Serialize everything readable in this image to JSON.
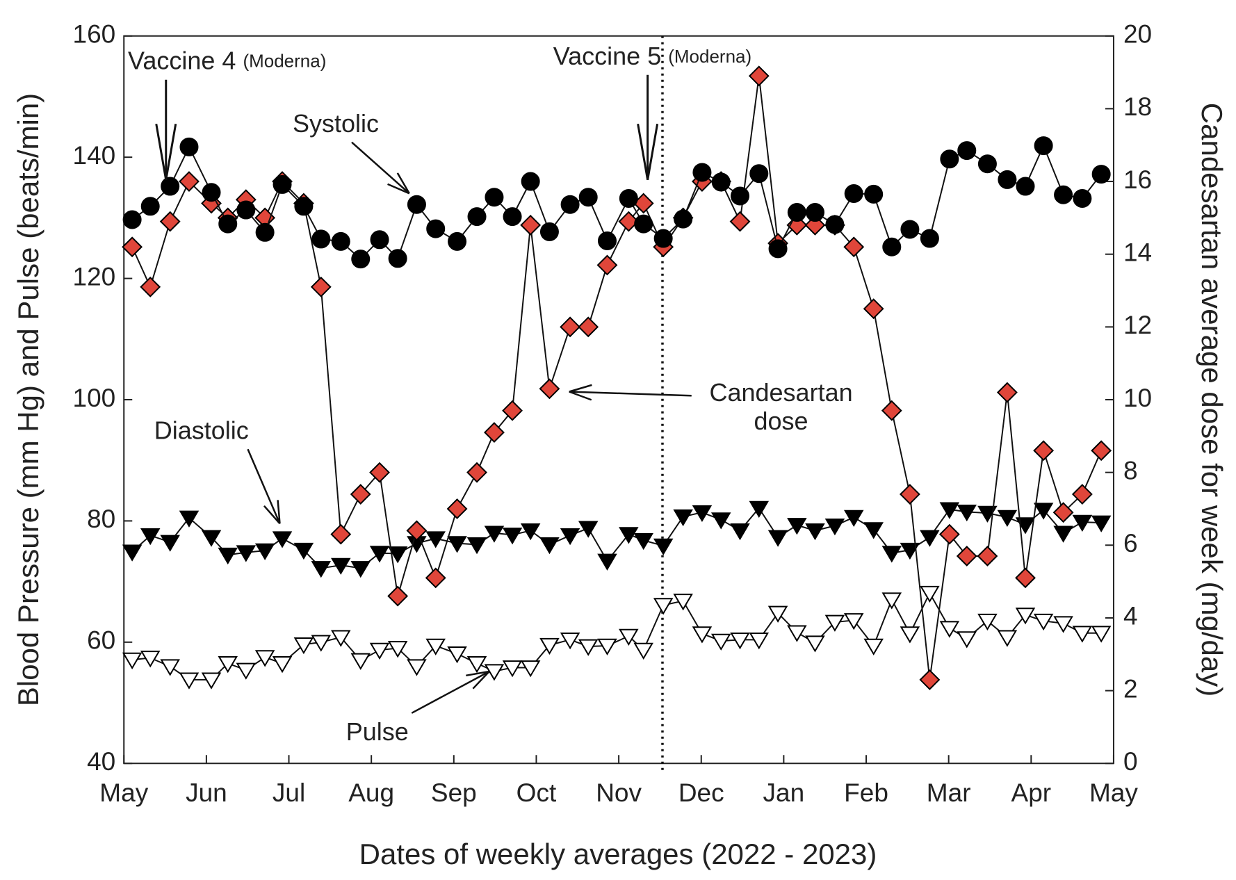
{
  "chart_data": {
    "type": "line",
    "xlabel": "Dates of weekly averages (2022 - 2023)",
    "ylabel": "Blood Pressure (mm Hg) and Pulse (beats/min)",
    "y2label": "Candesartan average dose for week (mg/day)",
    "x": [
      0.1,
      0.32,
      0.56,
      0.79,
      1.06,
      1.26,
      1.48,
      1.71,
      1.92,
      2.18,
      2.39,
      2.63,
      2.87,
      3.1,
      3.32,
      3.55,
      3.78,
      4.04,
      4.28,
      4.49,
      4.71,
      4.93,
      5.16,
      5.41,
      5.63,
      5.86,
      6.12,
      6.3,
      6.54,
      6.78,
      7.01,
      7.24,
      7.47,
      7.7,
      7.93,
      8.16,
      8.38,
      8.62,
      8.85,
      9.09,
      9.31,
      9.53,
      9.77,
      10.01,
      10.22,
      10.47,
      10.71,
      10.93,
      11.15,
      11.39,
      11.62,
      11.85
    ],
    "series": [
      {
        "name": "Pulse",
        "marker": "triangle-down",
        "color": "#ffffff",
        "values": [
          57.1,
          57.4,
          56.0,
          53.8,
          53.8,
          56.5,
          55.4,
          57.5,
          56.5,
          59.6,
          60.0,
          60.8,
          57.0,
          58.7,
          59.0,
          56.0,
          59.4,
          58.1,
          56.5,
          55.2,
          55.8,
          55.8,
          59.5,
          60.4,
          59.3,
          59.4,
          61.0,
          58.7,
          66.1,
          66.8,
          61.4,
          60.2,
          60.4,
          60.4,
          64.8,
          61.6,
          59.9,
          63.3,
          63.6,
          59.4,
          67.0,
          61.4,
          68.1,
          62.3,
          60.6,
          63.5,
          60.8,
          64.5,
          63.5,
          63.1,
          61.5,
          61.5
        ]
      },
      {
        "name": "Diastolic",
        "marker": "triangle-down",
        "color": "#000000",
        "values": [
          74.9,
          77.6,
          76.5,
          80.5,
          77.3,
          74.4,
          74.8,
          75.1,
          77.1,
          75.2,
          72.2,
          72.7,
          72.2,
          74.7,
          74.6,
          76.3,
          77.1,
          76.3,
          76.1,
          78.0,
          77.7,
          78.4,
          76.1,
          77.6,
          78.8,
          73.4,
          77.8,
          76.8,
          75.9,
          80.7,
          81.4,
          80.2,
          78.4,
          82.1,
          77.3,
          79.3,
          78.4,
          79.2,
          80.6,
          78.6,
          74.7,
          75.2,
          77.3,
          81.9,
          81.5,
          81.3,
          80.6,
          79.4,
          81.8,
          78.0,
          79.8,
          79.7
        ]
      },
      {
        "name": "Candesartan dose",
        "marker": "diamond",
        "color": "#e0463a",
        "axis": "y2",
        "values": [
          14.2,
          13.1,
          14.9,
          16.0,
          15.4,
          15.0,
          15.5,
          15.0,
          16.0,
          15.4,
          13.1,
          6.3,
          7.4,
          8.0,
          4.6,
          6.4,
          5.1,
          7.0,
          8.0,
          9.1,
          9.7,
          14.8,
          10.3,
          12.0,
          12.0,
          13.7,
          14.9,
          15.4,
          14.2,
          15.0,
          16.0,
          16.0,
          14.9,
          18.9,
          14.3,
          14.8,
          14.8,
          14.8,
          14.2,
          12.5,
          9.7,
          7.4,
          2.3,
          6.3,
          5.7,
          5.7,
          10.2,
          5.1,
          8.6,
          6.9,
          7.4,
          8.6
        ]
      },
      {
        "name": "Systolic",
        "marker": "circle",
        "color": "#000000",
        "values": [
          129.7,
          131.9,
          135.2,
          141.7,
          134.2,
          129.0,
          131.3,
          127.6,
          135.5,
          131.9,
          126.5,
          126.1,
          123.2,
          126.4,
          123.3,
          132.2,
          128.2,
          126.1,
          130.2,
          133.4,
          130.2,
          136.0,
          127.7,
          132.2,
          133.4,
          126.2,
          133.2,
          129.0,
          126.6,
          129.8,
          137.5,
          135.9,
          133.6,
          137.3,
          124.9,
          130.9,
          130.9,
          128.9,
          134.0,
          133.9,
          125.2,
          128.1,
          126.6,
          139.7,
          141.1,
          138.9,
          136.3,
          135.2,
          141.9,
          133.8,
          133.2,
          137.2
        ]
      }
    ],
    "annotations": [
      {
        "text": "Vaccine 4",
        "note": "(Moderna)",
        "x": 0.51
      },
      {
        "text": "Vaccine 5",
        "note": "(Moderna)",
        "x": 6.35
      }
    ],
    "vline_x": 6.53,
    "xlim": [
      0,
      12
    ],
    "xticks": [
      {
        "value": 0,
        "label": "May"
      },
      {
        "value": 1,
        "label": "Jun"
      },
      {
        "value": 2,
        "label": "Jul"
      },
      {
        "value": 3,
        "label": "Aug"
      },
      {
        "value": 4,
        "label": "Sep"
      },
      {
        "value": 5,
        "label": "Oct"
      },
      {
        "value": 6,
        "label": "Nov"
      },
      {
        "value": 7,
        "label": "Dec"
      },
      {
        "value": 8,
        "label": "Jan"
      },
      {
        "value": 9,
        "label": "Feb"
      },
      {
        "value": 10,
        "label": "Mar"
      },
      {
        "value": 11,
        "label": "Apr"
      },
      {
        "value": 12,
        "label": "May"
      }
    ],
    "ylim": [
      40,
      160
    ],
    "yticks": [
      40,
      60,
      80,
      100,
      120,
      140,
      160
    ],
    "y2lim": [
      0,
      20
    ],
    "y2ticks": [
      0,
      2,
      4,
      6,
      8,
      10,
      12,
      14,
      16,
      18,
      20
    ],
    "grid": false
  }
}
